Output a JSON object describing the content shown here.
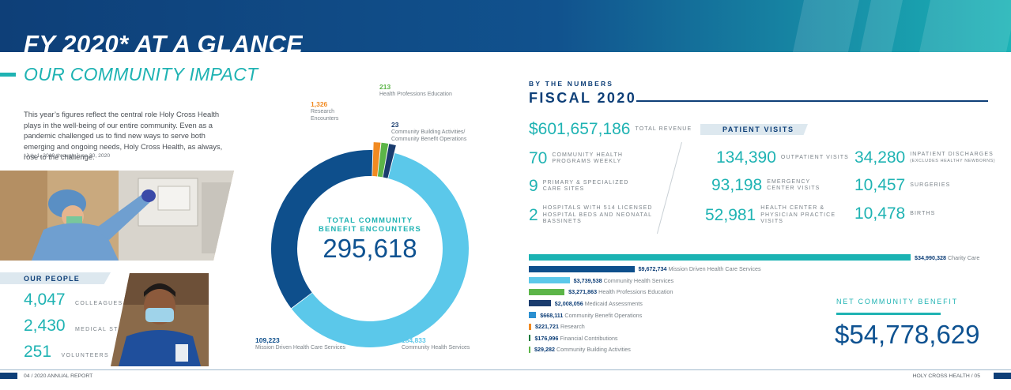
{
  "header": {
    "title": "FY 2020* AT A GLANCE",
    "subtitle": "OUR COMMUNITY IMPACT"
  },
  "intro": {
    "text": "This year’s figures reflect the central role Holy Cross Health plays in the well-being of our entire community. Even as a pandemic challenged us to find new ways to serve both emerging and ongoing needs, Holy Cross Health, as always, rose to the challenge.",
    "footnote": "*July 1, 2019 through June 30, 2020"
  },
  "people": {
    "heading": "OUR PEOPLE",
    "items": [
      {
        "value": "4,047",
        "label": "COLLEAGUES"
      },
      {
        "value": "2,430",
        "label": "MEDICAL STAFF"
      },
      {
        "value": "251",
        "label": "VOLUNTEERS"
      }
    ]
  },
  "donut": {
    "title": "TOTAL COMMUNITY BENEFIT ENCOUNTERS",
    "total": "295,618",
    "segments": [
      {
        "value": 184833,
        "display": "184,833",
        "label": "Community Health Services",
        "color": "#5bc8ea"
      },
      {
        "value": 109223,
        "display": "109,223",
        "label": "Mission Driven Health Care Services",
        "color": "#0e4f8c"
      },
      {
        "value": 1326,
        "display": "1,326",
        "label": "Research Encounters",
        "color": "#f18a21"
      },
      {
        "value": 213,
        "display": "213",
        "label": "Health Professions Education",
        "color": "#5cb548"
      },
      {
        "value": 23,
        "display": "23",
        "label": "Community Building Activities/ Community Benefit Operations",
        "color": "#1a3c6e"
      }
    ]
  },
  "numbers": {
    "kicker": "BY THE NUMBERS",
    "heading": "FISCAL 2020",
    "revenue": {
      "value": "$601,657,186",
      "label": "TOTAL REVENUE"
    },
    "items": [
      {
        "value": "70",
        "label": "COMMUNITY HEALTH PROGRAMS WEEKLY"
      },
      {
        "value": "9",
        "label": "PRIMARY & SPECIALIZED CARE SITES"
      },
      {
        "value": "2",
        "label": "HOSPITALS WITH 514 LICENSED HOSPITAL BEDS AND NEONATAL BASSINETS"
      }
    ]
  },
  "patient_visits": {
    "heading": "PATIENT VISITS",
    "items": [
      {
        "value": "134,390",
        "label": "OUTPATIENT VISITS"
      },
      {
        "value": "34,280",
        "label": "INPATIENT DISCHARGES",
        "note": "(EXCLUDES HEALTHY NEWBORNS)"
      },
      {
        "value": "93,198",
        "label": "EMERGENCY CENTER VISITS"
      },
      {
        "value": "10,457",
        "label": "SURGERIES"
      },
      {
        "value": "52,981",
        "label": "HEALTH CENTER & PHYSICIAN PRACTICE VISITS"
      },
      {
        "value": "10,478",
        "label": "BIRTHS"
      }
    ]
  },
  "chart_data": {
    "type": "bar",
    "orientation": "horizontal",
    "categories": [
      "Charity Care",
      "Mission Driven Health Care Services",
      "Community Health Services",
      "Health Professions Education",
      "Medicaid Assessments",
      "Community Benefit Operations",
      "Research",
      "Financial Contributions",
      "Community Building Activities"
    ],
    "values": [
      34990328,
      9672734,
      3739538,
      3271863,
      2008056,
      668111,
      221721,
      176996,
      29282
    ],
    "value_labels": [
      "$34,990,328",
      "$9,672,734",
      "$3,739,538",
      "$3,271,863",
      "$2,008,056",
      "$668,111",
      "$221,721",
      "$176,996",
      "$29,282"
    ],
    "colors": [
      "#1bb3b3",
      "#0e4f8c",
      "#5bc8ea",
      "#5cb548",
      "#1a3c6e",
      "#2b8fd0",
      "#f18a21",
      "#137a3c",
      "#5cb548"
    ]
  },
  "net_benefit": {
    "label": "NET COMMUNITY BENEFIT",
    "value": "$54,778,629"
  },
  "footer": {
    "left": "04  /  2020 ANNUAL REPORT",
    "right": "HOLY CROSS HEALTH  /  05"
  }
}
